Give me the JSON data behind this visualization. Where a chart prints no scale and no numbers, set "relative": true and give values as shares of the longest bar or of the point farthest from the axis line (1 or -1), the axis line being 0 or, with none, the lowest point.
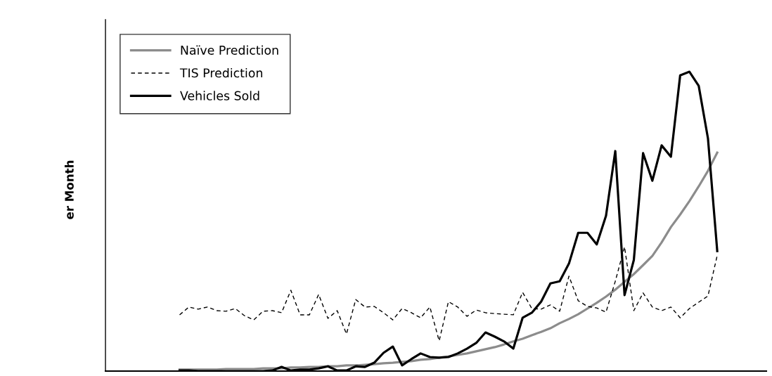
{
  "chart_data": {
    "type": "line",
    "relative": true,
    "annotations": [
      "er Month"
    ],
    "legend": "top left",
    "categories": [
      null,
      null,
      null,
      null,
      null,
      null,
      null,
      null,
      null,
      null,
      null,
      null,
      null,
      null,
      null,
      null,
      null,
      null,
      null,
      null,
      null,
      null,
      null,
      null,
      null,
      null,
      null,
      null,
      null,
      null,
      null,
      null,
      null,
      null,
      null,
      null,
      null,
      null,
      null,
      null,
      null,
      null,
      null,
      null,
      null,
      null,
      null,
      null,
      null,
      null,
      null,
      null,
      null,
      null,
      null,
      null,
      null,
      null,
      null
    ],
    "series": [
      {
        "name": "Naïve Prediction",
        "color": "#8c8c8c",
        "line_style": "solid",
        "values": [
          0.005,
          0.005,
          0.005,
          0.005,
          0.005,
          0.007,
          0.007,
          0.007,
          0.007,
          0.009,
          0.009,
          0.009,
          0.012,
          0.012,
          0.014,
          0.014,
          0.016,
          0.016,
          0.019,
          0.019,
          0.021,
          0.023,
          0.026,
          0.028,
          0.031,
          0.033,
          0.038,
          0.04,
          0.045,
          0.049,
          0.054,
          0.059,
          0.066,
          0.073,
          0.08,
          0.089,
          0.099,
          0.108,
          0.12,
          0.131,
          0.143,
          0.16,
          0.174,
          0.19,
          0.209,
          0.228,
          0.249,
          0.272,
          0.298,
          0.324,
          0.354,
          0.385,
          0.43,
          0.481,
          0.523,
          0.568,
          0.617,
          0.669,
          0.73
        ]
      },
      {
        "name": "TIS Prediction",
        "color": "#000000",
        "line_style": "dashed",
        "values": [
          0.188,
          0.214,
          0.207,
          0.214,
          0.202,
          0.2,
          0.209,
          0.185,
          0.171,
          0.2,
          0.202,
          0.195,
          0.27,
          0.188,
          0.188,
          0.256,
          0.176,
          0.202,
          0.124,
          0.239,
          0.214,
          0.216,
          0.195,
          0.171,
          0.209,
          0.195,
          0.178,
          0.214,
          0.101,
          0.232,
          0.214,
          0.183,
          0.204,
          0.195,
          0.192,
          0.19,
          0.188,
          0.263,
          0.209,
          0.207,
          0.221,
          0.2,
          0.317,
          0.235,
          0.216,
          0.211,
          0.197,
          0.3,
          0.415,
          0.202,
          0.261,
          0.214,
          0.202,
          0.214,
          0.178,
          0.209,
          0.23,
          0.251,
          0.387
        ]
      },
      {
        "name": "Vehicles Sold",
        "color": "#000000",
        "line_style": "solid",
        "values": [
          0.002,
          0.002,
          0,
          0,
          0,
          0,
          0,
          0,
          0,
          0,
          0.002,
          0.014,
          0.002,
          0.005,
          0.005,
          0.009,
          0.016,
          0.002,
          0.002,
          0.016,
          0.014,
          0.028,
          0.061,
          0.082,
          0.019,
          0.04,
          0.059,
          0.047,
          0.045,
          0.047,
          0.059,
          0.075,
          0.094,
          0.129,
          0.115,
          0.099,
          0.075,
          0.178,
          0.195,
          0.232,
          0.293,
          0.3,
          0.359,
          0.462,
          0.462,
          0.423,
          0.519,
          0.735,
          0.254,
          0.371,
          0.728,
          0.636,
          0.754,
          0.716,
          0.988,
          1,
          0.953,
          0.777,
          0.401
        ]
      }
    ]
  }
}
